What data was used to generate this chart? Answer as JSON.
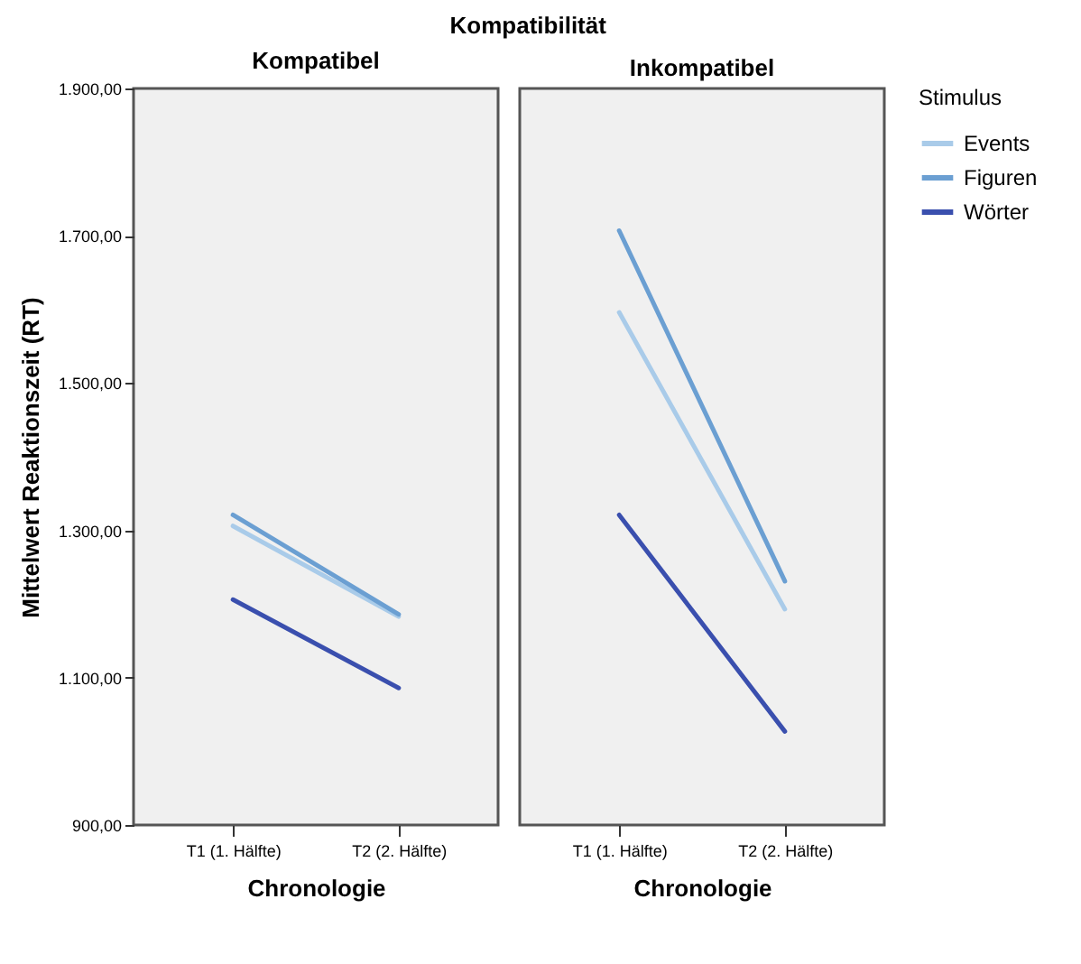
{
  "chart_data": [
    {
      "type": "line",
      "title": "Kompatibel",
      "annotations": [
        "Kompatibilität"
      ],
      "xlabel": "Chronologie",
      "ylabel": "Mittelwert Reaktionszeit (RT)",
      "categories": [
        "T1 (1. Hälfte)",
        "T2 (2. Hälfte)"
      ],
      "series": [
        {
          "name": "Events",
          "color": "#a9cbe9",
          "values": [
            1306,
            1183
          ]
        },
        {
          "name": "Figuren",
          "color": "#6b9fd2",
          "values": [
            1321,
            1186
          ]
        },
        {
          "name": "Wörter",
          "color": "#3a4fae",
          "values": [
            1206,
            1086
          ]
        }
      ],
      "ylim": [
        900,
        1900
      ],
      "yticks": [
        {
          "value": 900,
          "label": "900,00"
        },
        {
          "value": 1100,
          "label": "1.100,00"
        },
        {
          "value": 1300,
          "label": "1.300,00"
        },
        {
          "value": 1500,
          "label": "1.500,00"
        },
        {
          "value": 1700,
          "label": "1.700,00"
        },
        {
          "value": 1900,
          "label": "1.900,00"
        }
      ],
      "grid": false,
      "legend": "top right"
    },
    {
      "type": "line",
      "title": "Inkompatibel",
      "xlabel": "Chronologie",
      "legend_title": "Stimulus",
      "categories": [
        "T1 (1. Hälfte)",
        "T2 (2. Hälfte)"
      ],
      "series": [
        {
          "name": "Events",
          "color": "#a9cbe9",
          "values": [
            1596,
            1193
          ]
        },
        {
          "name": "Figuren",
          "color": "#6b9fd2",
          "values": [
            1707,
            1231
          ]
        },
        {
          "name": "Wörter",
          "color": "#3a4fae",
          "values": [
            1321,
            1027
          ]
        }
      ],
      "ylim": [
        900,
        1900
      ],
      "tick_labels": "x",
      "grid": false,
      "legend": "top right"
    }
  ]
}
